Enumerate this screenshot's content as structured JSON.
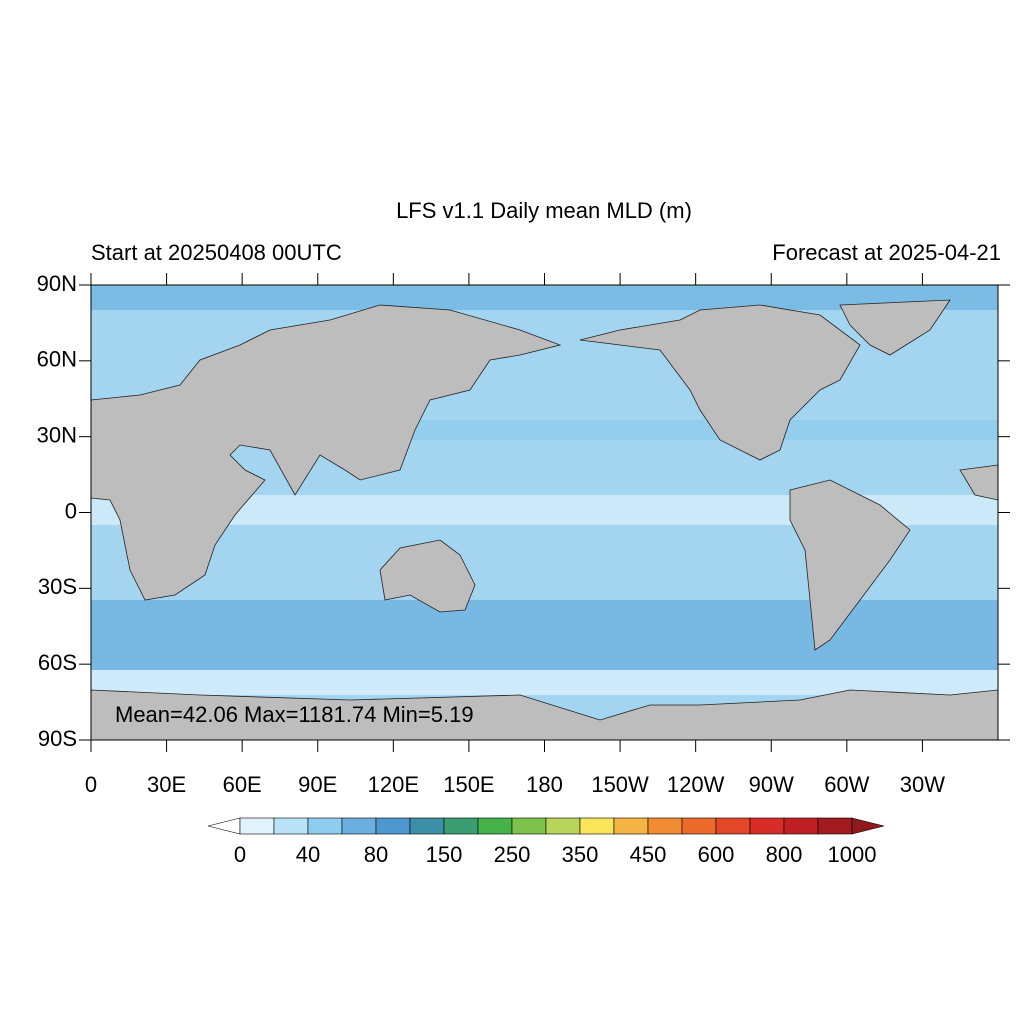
{
  "map": {
    "title": "LFS v1.1 Daily mean MLD (m)",
    "left_subtitle": "Start at 20250408 00UTC",
    "right_subtitle": "Forecast at 2025-04-21",
    "stats": "Mean=42.06  Max=1181.74  Min=5.19",
    "xlim": [
      0,
      360
    ],
    "ylim": [
      -90,
      90
    ],
    "xticks": [
      0,
      {
        "value": 30,
        "label": "30E"
      },
      {
        "value": 60,
        "label": "60E"
      },
      {
        "value": 90,
        "label": "90E"
      },
      {
        "value": 120,
        "label": "120E"
      },
      {
        "value": 150,
        "label": "150E"
      },
      180,
      {
        "value": 210,
        "label": "150W"
      },
      {
        "value": 240,
        "label": "120W"
      },
      {
        "value": 270,
        "label": "90W"
      },
      {
        "value": 300,
        "label": "60W"
      },
      {
        "value": 330,
        "label": "30W"
      }
    ],
    "yticks": [
      {
        "value": 90,
        "label": "90N"
      },
      {
        "value": 60,
        "label": "60N"
      },
      {
        "value": 30,
        "label": "30N"
      },
      0,
      {
        "value": -30,
        "label": "30S"
      },
      {
        "value": -60,
        "label": "60S"
      },
      {
        "value": -90,
        "label": "90S"
      }
    ],
    "colorbar": {
      "labels": [
        0,
        40,
        80,
        150,
        250,
        350,
        450,
        600,
        800,
        1000
      ],
      "colors": [
        "#e0f3fc",
        "#b9e3f7",
        "#8fcdef",
        "#6aafdf",
        "#4f97cf",
        "#3d8fa8",
        "#3b9e72",
        "#46b24a",
        "#7dc24a",
        "#b8d45a",
        "#f9e45a",
        "#f5b545",
        "#f28c32",
        "#ec6a29",
        "#e3472a",
        "#d82c27",
        "#c02024",
        "#a21c1f"
      ],
      "under_color": "#ffffff",
      "over_color": "#8e1a1e"
    }
  }
}
